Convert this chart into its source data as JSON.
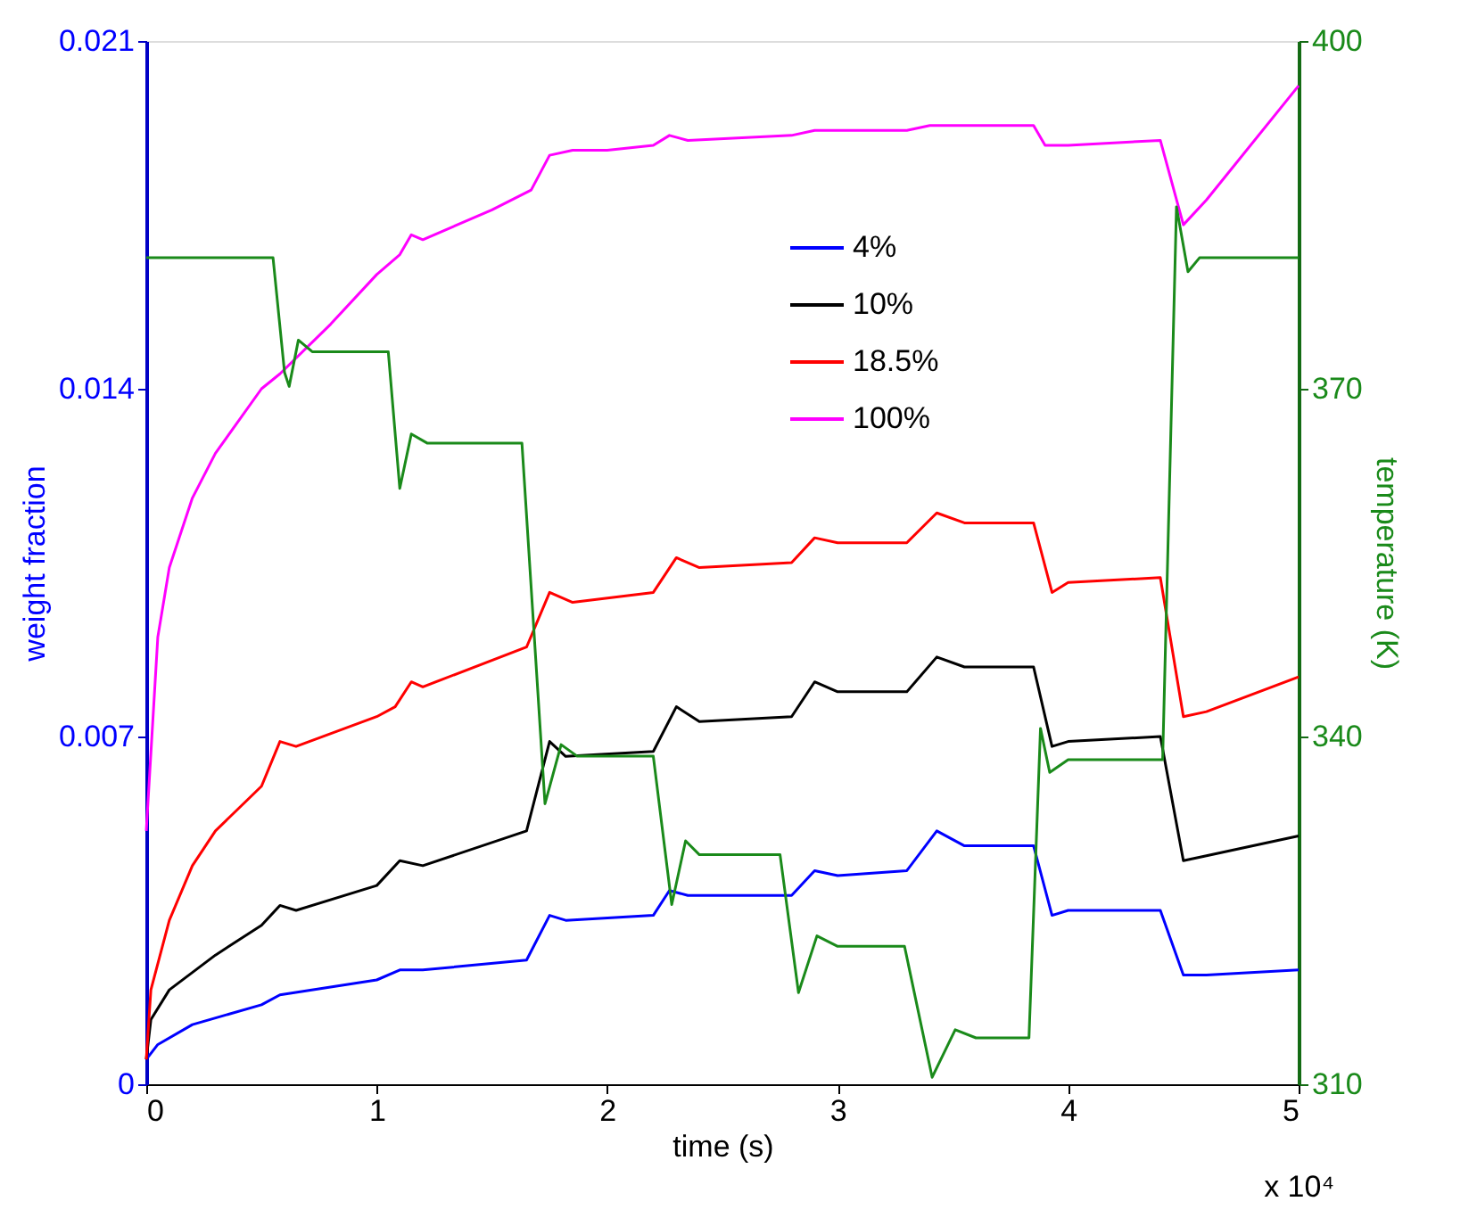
{
  "chart_data": {
    "type": "line",
    "xlabel": "time (s)",
    "ylabel": "weight fraction",
    "y2label": "temperature (K)",
    "xlim": [
      0,
      5
    ],
    "xticks": [
      0,
      1,
      2,
      3,
      4,
      5
    ],
    "ylim": [
      0,
      0.021
    ],
    "yticks": [
      0,
      0.007,
      0.014,
      0.021
    ],
    "y2lim": [
      310,
      400
    ],
    "y2ticks": [
      310,
      340,
      370,
      400
    ],
    "annotations": [
      "x 10⁴"
    ],
    "legend": "top right",
    "grid": false,
    "line_style": "solid",
    "marker": "none",
    "series": [
      {
        "name": "4%",
        "color": "#0000ff",
        "x": [
          0,
          0.05,
          0.2,
          0.5,
          0.58,
          1.0,
          1.1,
          1.2,
          1.65,
          1.75,
          1.82,
          2.2,
          2.27,
          2.35,
          2.8,
          2.9,
          3.0,
          3.3,
          3.43,
          3.55,
          3.85,
          3.93,
          4.0,
          4.4,
          4.5,
          4.6,
          5.0
        ],
        "values": [
          0.0005,
          0.0008,
          0.0012,
          0.0016,
          0.0018,
          0.0021,
          0.0023,
          0.0023,
          0.0025,
          0.0034,
          0.0033,
          0.0034,
          0.0039,
          0.0038,
          0.0038,
          0.0043,
          0.0042,
          0.0043,
          0.0051,
          0.0048,
          0.0048,
          0.0034,
          0.0035,
          0.0035,
          0.0022,
          0.0022,
          0.0023
        ]
      },
      {
        "name": "10%",
        "color": "#000000",
        "x": [
          0,
          0.02,
          0.1,
          0.3,
          0.5,
          0.58,
          0.65,
          1.0,
          1.1,
          1.2,
          1.65,
          1.75,
          1.82,
          2.2,
          2.3,
          2.4,
          2.8,
          2.9,
          3.0,
          3.3,
          3.43,
          3.55,
          3.85,
          3.93,
          4.0,
          4.4,
          4.5,
          4.6,
          5.0
        ],
        "values": [
          0.0005,
          0.0013,
          0.0019,
          0.0026,
          0.0032,
          0.0036,
          0.0035,
          0.004,
          0.0045,
          0.0044,
          0.0051,
          0.0069,
          0.0066,
          0.0067,
          0.0076,
          0.0073,
          0.0074,
          0.0081,
          0.0079,
          0.0079,
          0.0086,
          0.0084,
          0.0084,
          0.0068,
          0.0069,
          0.007,
          0.0045,
          0.0046,
          0.005
        ]
      },
      {
        "name": "18.5%",
        "color": "#ff0000",
        "x": [
          0,
          0.02,
          0.1,
          0.2,
          0.3,
          0.5,
          0.58,
          0.65,
          1.0,
          1.08,
          1.15,
          1.2,
          1.65,
          1.75,
          1.85,
          2.2,
          2.3,
          2.4,
          2.8,
          2.9,
          3.0,
          3.3,
          3.43,
          3.55,
          3.85,
          3.93,
          4.0,
          4.4,
          4.5,
          4.6,
          5.0
        ],
        "values": [
          0.0005,
          0.0019,
          0.0033,
          0.0044,
          0.0051,
          0.006,
          0.0069,
          0.0068,
          0.0074,
          0.0076,
          0.0081,
          0.008,
          0.0088,
          0.0099,
          0.0097,
          0.0099,
          0.0106,
          0.0104,
          0.0105,
          0.011,
          0.0109,
          0.0109,
          0.0115,
          0.0113,
          0.0113,
          0.0099,
          0.0101,
          0.0102,
          0.0074,
          0.0075,
          0.0082
        ]
      },
      {
        "name": "100%",
        "color": "#ff00ff",
        "x": [
          0,
          0.05,
          0.1,
          0.2,
          0.3,
          0.5,
          0.58,
          0.8,
          1.0,
          1.1,
          1.15,
          1.2,
          1.5,
          1.67,
          1.75,
          1.85,
          2.0,
          2.2,
          2.27,
          2.35,
          2.8,
          2.9,
          3.0,
          3.3,
          3.4,
          3.5,
          3.85,
          3.9,
          4.0,
          4.4,
          4.5,
          4.6,
          5.0
        ],
        "values": [
          0.0051,
          0.009,
          0.0104,
          0.0118,
          0.0127,
          0.014,
          0.0143,
          0.0153,
          0.0163,
          0.0167,
          0.0171,
          0.017,
          0.0176,
          0.018,
          0.0187,
          0.0188,
          0.0188,
          0.0189,
          0.0191,
          0.019,
          0.0191,
          0.0192,
          0.0192,
          0.0192,
          0.0193,
          0.0193,
          0.0193,
          0.0189,
          0.0189,
          0.019,
          0.0173,
          0.0178,
          0.0201
        ]
      },
      {
        "color": "#1a8a1a",
        "axis": "y2",
        "x": [
          0,
          0.55,
          0.6,
          0.62,
          0.66,
          0.72,
          1.05,
          1.1,
          1.15,
          1.22,
          1.63,
          1.73,
          1.8,
          1.87,
          2.2,
          2.28,
          2.34,
          2.4,
          2.75,
          2.83,
          2.91,
          3.0,
          3.29,
          3.41,
          3.51,
          3.6,
          3.83,
          3.88,
          3.92,
          4.0,
          4.41,
          4.47,
          4.52,
          4.57,
          5.0
        ],
        "values": [
          381.3,
          381.3,
          371.4,
          370.2,
          374.2,
          373.2,
          373.2,
          361.4,
          366.1,
          365.3,
          365.3,
          334.2,
          339.3,
          338.3,
          338.3,
          325.5,
          331.0,
          329.8,
          329.8,
          317.9,
          322.8,
          321.9,
          321.9,
          310.6,
          314.7,
          314.0,
          314.0,
          340.7,
          336.9,
          338.0,
          338.0,
          385.7,
          380.1,
          381.3,
          381.3
        ]
      }
    ]
  }
}
